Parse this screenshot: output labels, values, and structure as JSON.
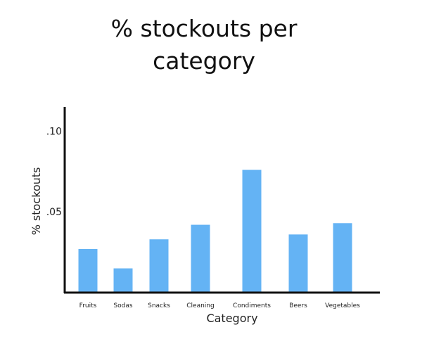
{
  "chart_data": {
    "type": "bar",
    "title": "% stockouts per category",
    "xlabel": "Category",
    "ylabel": "% stockouts",
    "categories": [
      "Fruits",
      "Sodas",
      "Snacks",
      "Cleaning",
      "Condiments",
      "Beers",
      "Vegetables"
    ],
    "values": [
      0.027,
      0.015,
      0.033,
      0.042,
      0.076,
      0.036,
      0.043
    ],
    "yticks": [
      ".10",
      ".05"
    ],
    "ytick_values": [
      0.1,
      0.05
    ],
    "ylim": [
      0,
      0.115
    ],
    "grid": false,
    "bar_color": "#64b3f4",
    "axis_color": "#111111"
  }
}
